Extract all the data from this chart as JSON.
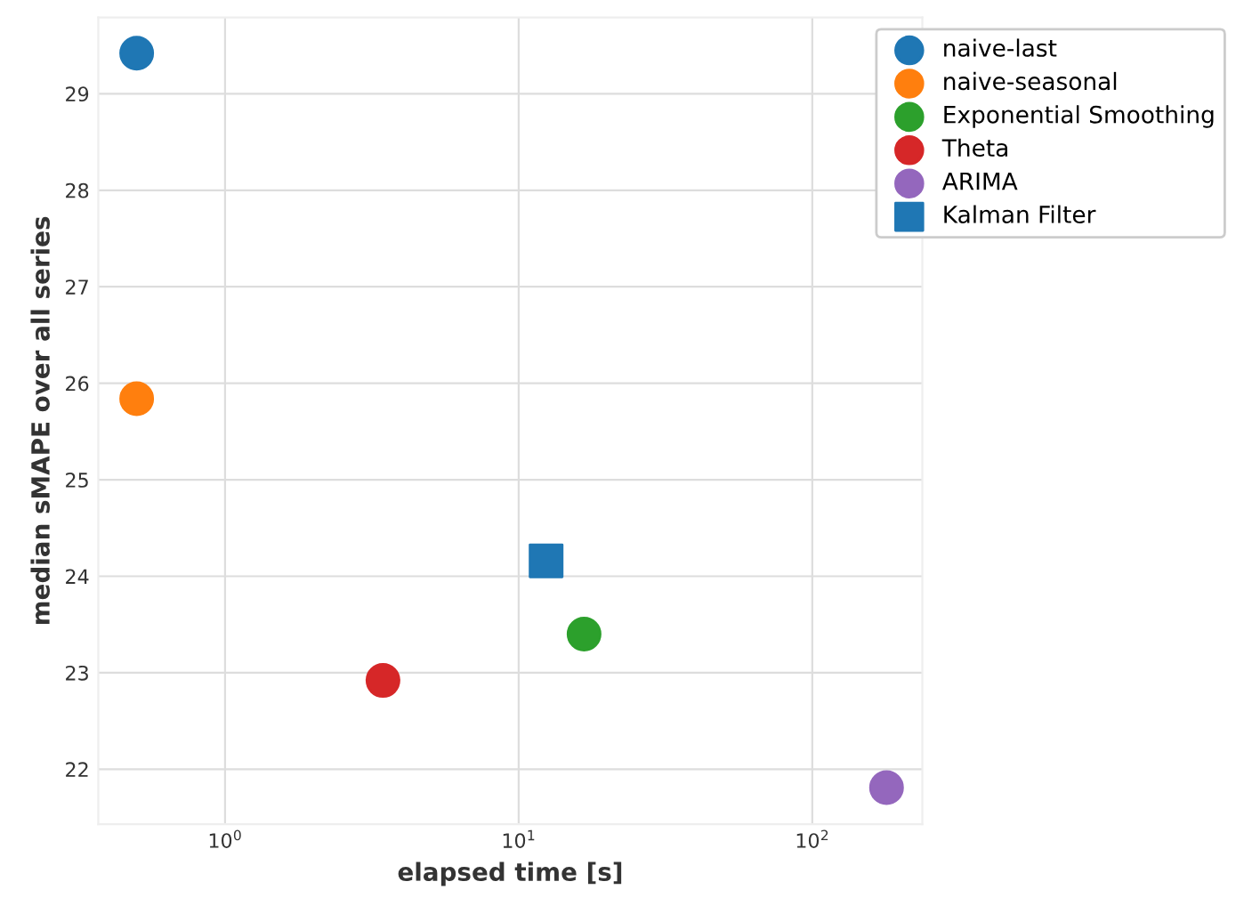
{
  "chart_data": {
    "type": "scatter",
    "xlabel": "elapsed time [s]",
    "ylabel": "median sMAPE over all series",
    "log": "x",
    "xlim": [
      0.37,
      237
    ],
    "ylim": [
      21.43,
      29.79
    ],
    "xticks": [
      {
        "value": 1,
        "label": "10$^{0}$"
      },
      {
        "value": 10,
        "label": "10$^{1}$"
      },
      {
        "value": 100,
        "label": "10$^{2}$"
      }
    ],
    "yticks": [
      22,
      23,
      24,
      25,
      26,
      27,
      28,
      29
    ],
    "grid": true,
    "legend": "top right",
    "series": [
      {
        "name": "naive-last",
        "color": "#1f77b4",
        "marker": "circle",
        "x": [
          0.5
        ],
        "values": [
          29.42
        ]
      },
      {
        "name": "naive-seasonal",
        "color": "#ff7f0e",
        "marker": "circle",
        "x": [
          0.5
        ],
        "values": [
          25.84
        ]
      },
      {
        "name": "Exponential Smoothing",
        "color": "#2ca02c",
        "marker": "circle",
        "x": [
          16.7
        ],
        "values": [
          23.4
        ]
      },
      {
        "name": "Theta",
        "color": "#d62728",
        "marker": "circle",
        "x": [
          3.45
        ],
        "values": [
          22.92
        ]
      },
      {
        "name": "ARIMA",
        "color": "#9467bd",
        "marker": "circle",
        "x": [
          179
        ],
        "values": [
          21.81
        ]
      },
      {
        "name": "Kalman Filter",
        "color": "#1f77b4",
        "marker": "square",
        "x": [
          12.4
        ],
        "values": [
          24.16
        ]
      }
    ]
  }
}
